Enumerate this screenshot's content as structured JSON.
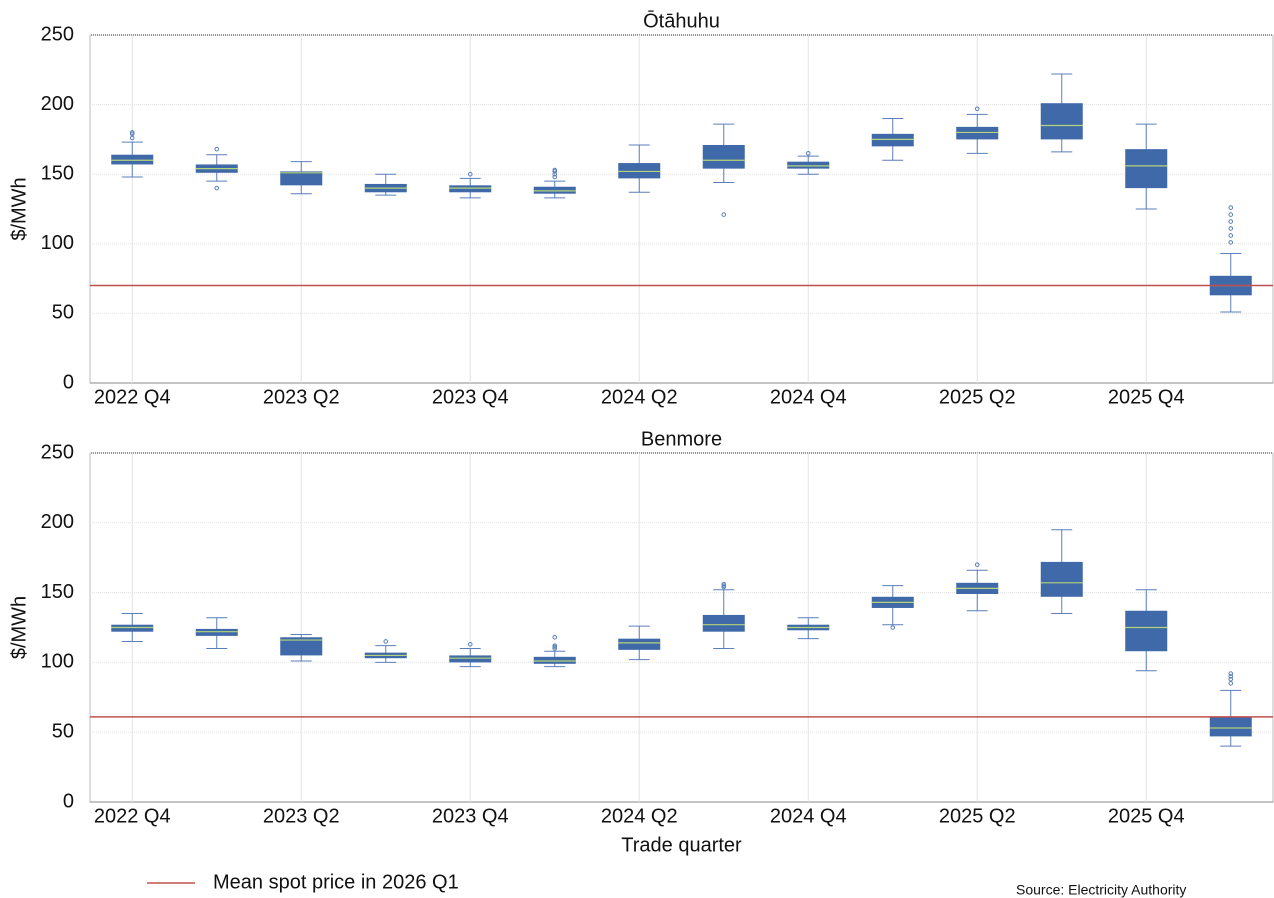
{
  "chart_data": [
    {
      "type": "box",
      "title": "Ōtāhuhu",
      "ylabel": "$/MWh",
      "categories": [
        "2022 Q4",
        null,
        "2023 Q2",
        null,
        "2023 Q4",
        null,
        "2024 Q2",
        null,
        "2024 Q4",
        null,
        "2025 Q2",
        null,
        "2025 Q4",
        null
      ],
      "boxes": [
        {
          "low": 148,
          "q1": 157,
          "median": 160,
          "q3": 164,
          "high": 173,
          "outliers": [
            176,
            179,
            180
          ]
        },
        {
          "low": 145,
          "q1": 151,
          "median": 154,
          "q3": 157,
          "high": 164,
          "outliers": [
            140,
            168
          ]
        },
        {
          "low": 136,
          "q1": 142,
          "median": 151,
          "q3": 152,
          "high": 159,
          "outliers": []
        },
        {
          "low": 135,
          "q1": 137,
          "median": 140,
          "q3": 143,
          "high": 150,
          "outliers": []
        },
        {
          "low": 133,
          "q1": 137,
          "median": 140,
          "q3": 142,
          "high": 147,
          "outliers": [
            150
          ]
        },
        {
          "low": 133,
          "q1": 136,
          "median": 138,
          "q3": 141,
          "high": 145,
          "outliers": [
            148,
            150,
            152,
            153
          ]
        },
        {
          "low": 137,
          "q1": 147,
          "median": 152,
          "q3": 158,
          "high": 171,
          "outliers": []
        },
        {
          "low": 144,
          "q1": 154,
          "median": 160,
          "q3": 171,
          "high": 186,
          "outliers": [
            121
          ]
        },
        {
          "low": 150,
          "q1": 154,
          "median": 156,
          "q3": 159,
          "high": 163,
          "outliers": [
            165
          ]
        },
        {
          "low": 160,
          "q1": 170,
          "median": 175,
          "q3": 179,
          "high": 190,
          "outliers": []
        },
        {
          "low": 165,
          "q1": 175,
          "median": 180,
          "q3": 184,
          "high": 193,
          "outliers": [
            197
          ]
        },
        {
          "low": 166,
          "q1": 175,
          "median": 185,
          "q3": 201,
          "high": 222,
          "outliers": []
        },
        {
          "low": 125,
          "q1": 140,
          "median": 156,
          "q3": 168,
          "high": 186,
          "outliers": []
        },
        {
          "low": 51,
          "q1": 63,
          "median": 70,
          "q3": 77,
          "high": 93,
          "outliers": [
            101,
            106,
            111,
            116,
            121,
            126
          ]
        }
      ],
      "box_color": "#3f69a8",
      "median_color": "#b5d37a",
      "reference_line": {
        "value": 70,
        "color": "#c0504d"
      },
      "ylim": [
        0,
        250
      ],
      "yticks": [
        0,
        50,
        100,
        150,
        200,
        250
      ],
      "grid": true
    },
    {
      "type": "box",
      "title": "Benmore",
      "ylabel": "$/MWh",
      "xlabel": "Trade quarter",
      "categories": [
        "2022 Q4",
        null,
        "2023 Q2",
        null,
        "2023 Q4",
        null,
        "2024 Q2",
        null,
        "2024 Q4",
        null,
        "2025 Q2",
        null,
        "2025 Q4",
        null
      ],
      "boxes": [
        {
          "low": 115,
          "q1": 122,
          "median": 125,
          "q3": 127,
          "high": 135,
          "outliers": []
        },
        {
          "low": 110,
          "q1": 119,
          "median": 122,
          "q3": 124,
          "high": 132,
          "outliers": []
        },
        {
          "low": 101,
          "q1": 105,
          "median": 116,
          "q3": 118,
          "high": 120,
          "outliers": []
        },
        {
          "low": 100,
          "q1": 103,
          "median": 105,
          "q3": 107,
          "high": 112,
          "outliers": [
            115
          ]
        },
        {
          "low": 97,
          "q1": 100,
          "median": 103,
          "q3": 105,
          "high": 110,
          "outliers": [
            113
          ]
        },
        {
          "low": 97,
          "q1": 99,
          "median": 101,
          "q3": 104,
          "high": 108,
          "outliers": [
            110,
            111,
            112,
            118
          ]
        },
        {
          "low": 102,
          "q1": 109,
          "median": 114,
          "q3": 117,
          "high": 126,
          "outliers": []
        },
        {
          "low": 110,
          "q1": 122,
          "median": 127,
          "q3": 134,
          "high": 152,
          "outliers": [
            154,
            155,
            156
          ]
        },
        {
          "low": 117,
          "q1": 123,
          "median": 125,
          "q3": 127,
          "high": 132,
          "outliers": []
        },
        {
          "low": 127,
          "q1": 139,
          "median": 143,
          "q3": 147,
          "high": 155,
          "outliers": [
            125
          ]
        },
        {
          "low": 137,
          "q1": 149,
          "median": 153,
          "q3": 157,
          "high": 166,
          "outliers": [
            170
          ]
        },
        {
          "low": 135,
          "q1": 147,
          "median": 157,
          "q3": 172,
          "high": 195,
          "outliers": []
        },
        {
          "low": 94,
          "q1": 108,
          "median": 125,
          "q3": 137,
          "high": 152,
          "outliers": []
        },
        {
          "low": 40,
          "q1": 47,
          "median": 53,
          "q3": 61,
          "high": 80,
          "outliers": [
            85,
            88,
            90,
            92
          ]
        }
      ],
      "box_color": "#3f69a8",
      "median_color": "#b5d37a",
      "reference_line": {
        "name": "Mean spot price in 2026 Q1",
        "value": 61,
        "color": "#c0504d"
      },
      "ylim": [
        0,
        250
      ],
      "yticks": [
        0,
        50,
        100,
        150,
        200,
        250
      ],
      "grid": true,
      "source": "Source: Electricity Authority"
    }
  ]
}
